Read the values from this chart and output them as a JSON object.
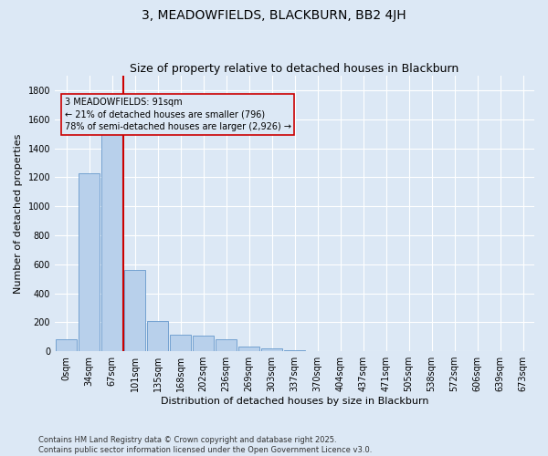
{
  "title": "3, MEADOWFIELDS, BLACKBURN, BB2 4JH",
  "subtitle": "Size of property relative to detached houses in Blackburn",
  "xlabel": "Distribution of detached houses by size in Blackburn",
  "ylabel": "Number of detached properties",
  "categories": [
    "0sqm",
    "34sqm",
    "67sqm",
    "101sqm",
    "135sqm",
    "168sqm",
    "202sqm",
    "236sqm",
    "269sqm",
    "303sqm",
    "337sqm",
    "370sqm",
    "404sqm",
    "437sqm",
    "471sqm",
    "505sqm",
    "538sqm",
    "572sqm",
    "606sqm",
    "639sqm",
    "673sqm"
  ],
  "values": [
    80,
    1230,
    1530,
    560,
    210,
    115,
    105,
    80,
    30,
    20,
    5,
    0,
    0,
    0,
    0,
    0,
    0,
    0,
    0,
    0,
    0
  ],
  "bar_color": "#b8d0eb",
  "bar_edge_color": "#6699cc",
  "background_color": "#dce8f5",
  "grid_color": "#ffffff",
  "vline_position": 2.5,
  "vline_color": "#cc0000",
  "annotation_text": "3 MEADOWFIELDS: 91sqm\n← 21% of detached houses are smaller (796)\n78% of semi-detached houses are larger (2,926) →",
  "annotation_box_edgecolor": "#cc0000",
  "ylim": [
    0,
    1900
  ],
  "yticks": [
    0,
    200,
    400,
    600,
    800,
    1000,
    1200,
    1400,
    1600,
    1800
  ],
  "footer_line1": "Contains HM Land Registry data © Crown copyright and database right 2025.",
  "footer_line2": "Contains public sector information licensed under the Open Government Licence v3.0.",
  "title_fontsize": 10,
  "subtitle_fontsize": 9,
  "ylabel_fontsize": 8,
  "xlabel_fontsize": 8,
  "tick_fontsize": 7,
  "footer_fontsize": 6,
  "annot_fontsize": 7
}
